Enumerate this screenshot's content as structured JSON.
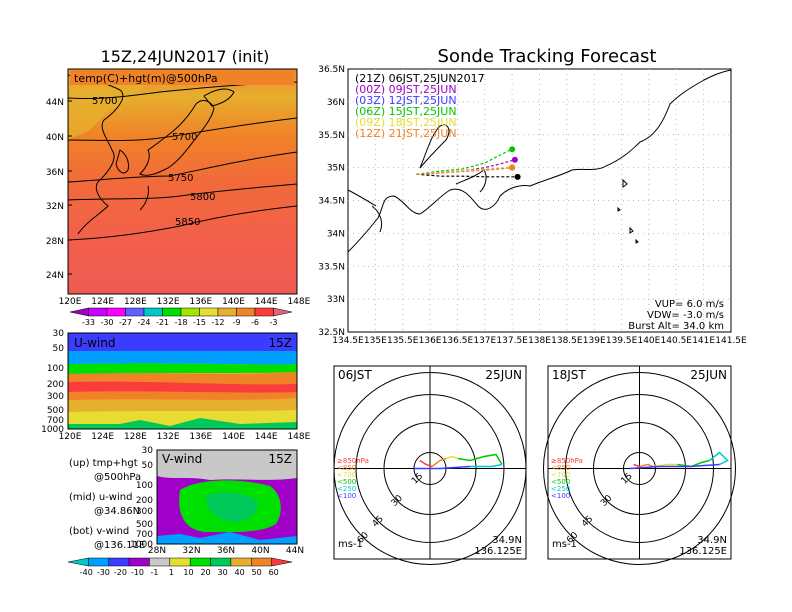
{
  "left_title": "15Z,24JUN2017 (init)",
  "right_title": "Sonde Tracking Forecast",
  "temp_map": {
    "label": "temp(C)+hgt(m)@500hPa",
    "y_ticks": [
      "44N",
      "40N",
      "36N",
      "32N",
      "28N",
      "24N"
    ],
    "x_ticks": [
      "120E",
      "124E",
      "128E",
      "132E",
      "136E",
      "140E",
      "144E",
      "148E"
    ],
    "contours": [
      "5700",
      "5700",
      "5750",
      "5800",
      "5850"
    ]
  },
  "temp_colorbar": {
    "labels": [
      "-33",
      "-30",
      "-27",
      "-24",
      "-21",
      "-18",
      "-15",
      "-12",
      "-9",
      "-6",
      "-3"
    ],
    "colors": [
      "#a000c8",
      "#c800ff",
      "#ff00ff",
      "#6060ff",
      "#00c8c8",
      "#00e000",
      "#a0e600",
      "#e6dc32",
      "#e6af2d",
      "#f08228",
      "#fa3c3c",
      "#e6647a"
    ]
  },
  "u_wind": {
    "label": "U-wind",
    "time": "15Z",
    "y_ticks": [
      "30",
      "50",
      "100",
      "200",
      "300",
      "500",
      "700",
      "1000"
    ],
    "x_ticks": [
      "120E",
      "124E",
      "128E",
      "132E",
      "136E",
      "140E",
      "144E",
      "148E"
    ]
  },
  "v_wind": {
    "label": "V-wind",
    "time": "15Z",
    "y_ticks": [
      "30",
      "50",
      "100",
      "200",
      "300",
      "500",
      "700",
      "1000"
    ],
    "x_ticks": [
      "28N",
      "32N",
      "36N",
      "40N",
      "44N"
    ]
  },
  "side_legend": [
    "(up) tmp+hgt",
    "@500hPa",
    "(mid) u-wind",
    "@34.86N",
    "(bot) v-wind",
    "@136.11E"
  ],
  "wind_colorbar": {
    "labels": [
      "-40",
      "-30",
      "-20",
      "-10",
      "-1",
      "1",
      "10",
      "20",
      "30",
      "40",
      "50",
      "60"
    ],
    "colors": [
      "#00c8c8",
      "#00a0ff",
      "#3c3cff",
      "#a000c8",
      "#c8c8c8",
      "#e6dc32",
      "#00e000",
      "#00c85a",
      "#e6af2d",
      "#f08228",
      "#fa3c3c"
    ]
  },
  "track_map": {
    "legend": [
      {
        "label": "(21Z)  06JST,25JUN2017",
        "color": "#000000"
      },
      {
        "label": "(00Z)  09JST,25JUN",
        "color": "#a000c8"
      },
      {
        "label": "(03Z)  12JST,25JUN",
        "color": "#3c3cff"
      },
      {
        "label": "(06Z)  15JST,25JUN",
        "color": "#00c800"
      },
      {
        "label": "(09Z)  18JST,25JUN",
        "color": "#e6dc32"
      },
      {
        "label": "(12Z)  21JST,25JUN",
        "color": "#f08228"
      }
    ],
    "x_ticks": [
      "134.5E",
      "135E",
      "135.5E",
      "136E",
      "136.5E",
      "137E",
      "137.5E",
      "138E",
      "138.5E",
      "139E",
      "139.5E",
      "140E",
      "140.5E",
      "141E",
      "141.5E"
    ],
    "y_ticks": [
      "36.5N",
      "36N",
      "35.5N",
      "35N",
      "34.5N",
      "34N",
      "33.5N",
      "33N",
      "32.5N"
    ],
    "params": [
      "VUP=  6.0  m/s",
      "VDW=  -3.0  m/s",
      "Burst Alt=  34.0  km"
    ]
  },
  "hodographs": [
    {
      "time": "06JST",
      "date": "25JUN",
      "lat": "34.9N",
      "lon": "136.125E",
      "unit": "ms-1"
    },
    {
      "time": "18JST",
      "date": "25JUN",
      "lat": "34.9N",
      "lon": "136.125E",
      "unit": "ms-1"
    }
  ],
  "hodo_rings": [
    "15",
    "30",
    "45",
    "60"
  ],
  "hodo_levels": [
    {
      "label": "≥850hPa",
      "color": "#fa3c3c"
    },
    {
      "label": "<850",
      "color": "#f08228"
    },
    {
      "label": "<700",
      "color": "#e6dc32"
    },
    {
      "label": "<500",
      "color": "#00c800"
    },
    {
      "label": "<250",
      "color": "#00c8c8"
    },
    {
      "label": "<100",
      "color": "#3c3cff"
    }
  ],
  "chart_data": [
    {
      "type": "line",
      "title": "Sonde Tracking Forecast",
      "xlim": [
        134.5,
        141.5
      ],
      "ylim": [
        32.5,
        36.5
      ],
      "series": [
        {
          "name": "(21Z)  06JST,25JUN2017",
          "x": [
            135.75,
            136.2,
            136.6,
            137.0,
            137.3,
            137.6
          ],
          "y": [
            34.9,
            34.87,
            34.87,
            34.86,
            34.86,
            34.86
          ]
        },
        {
          "name": "(00Z)  09JST,25JUN",
          "x": [
            135.75,
            136.2,
            136.6,
            137.0,
            137.3,
            137.55
          ],
          "y": [
            34.9,
            34.92,
            34.95,
            35.0,
            35.06,
            35.12
          ]
        },
        {
          "name": "(03Z)  12JST,25JUN",
          "x": [
            135.75,
            136.2,
            136.6,
            137.0,
            137.3,
            137.5
          ],
          "y": [
            34.9,
            34.93,
            34.95,
            34.97,
            34.99,
            35.0
          ]
        },
        {
          "name": "(06Z)  15JST,25JUN",
          "x": [
            135.75,
            136.2,
            136.6,
            137.0,
            137.3,
            137.5
          ],
          "y": [
            34.9,
            34.95,
            34.98,
            35.07,
            35.2,
            35.28
          ]
        },
        {
          "name": "(09Z)  18JST,25JUN",
          "x": [
            135.75,
            136.2,
            136.6,
            137.0,
            137.3,
            137.5
          ],
          "y": [
            34.9,
            34.93,
            34.95,
            34.98,
            35.0,
            35.01
          ]
        },
        {
          "name": "(12Z)  21JST,25JUN",
          "x": [
            135.75,
            136.2,
            136.6,
            137.0,
            137.3,
            137.5
          ],
          "y": [
            34.9,
            34.92,
            34.94,
            34.96,
            34.98,
            35.0
          ]
        }
      ]
    }
  ]
}
